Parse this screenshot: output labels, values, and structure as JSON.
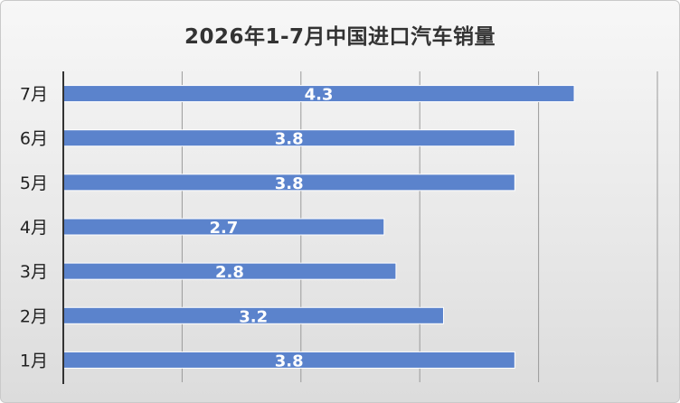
{
  "chart_data": {
    "type": "bar",
    "orientation": "horizontal",
    "title": "2026年1-7月中国进口汽车销量",
    "categories": [
      "1月",
      "2月",
      "3月",
      "4月",
      "5月",
      "6月",
      "7月"
    ],
    "values": [
      3.8,
      3.2,
      2.8,
      2.7,
      3.8,
      3.8,
      4.3
    ],
    "data_labels": [
      "3.8",
      "3.2",
      "2.8",
      "2.7",
      "3.8",
      "3.8",
      "4.3"
    ],
    "xlim": [
      0,
      5
    ],
    "grid": true,
    "legend": "none",
    "colors": {
      "bar": "#5b83cc",
      "bar_edge": "#ffffff",
      "grid": "#9a9a9a",
      "axis": "#333333"
    }
  }
}
